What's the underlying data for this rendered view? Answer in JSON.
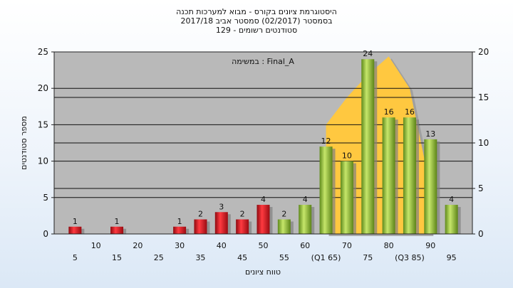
{
  "chart_data": {
    "type": "bar",
    "title_lines": [
      "היסטוגרמת ציונים בקורס - מבוא למערכות תכנה",
      "בסמסטר  (02/2017)  סמסטר אביב 2017/18",
      "סטודנטים רשומים - 129"
    ],
    "annotation": "במשימה : Final_A",
    "ylabel": "מספר סטודנטים",
    "xlabel": "טווח ציונים",
    "ylim": [
      0,
      25
    ],
    "y_ticks": [
      0,
      5,
      10,
      15,
      20,
      25
    ],
    "y2lim": [
      0,
      20
    ],
    "y2_ticks": [
      0,
      5,
      10,
      15,
      20
    ],
    "x_tick_labels": [
      {
        "pos": 5,
        "label": "5"
      },
      {
        "pos": 10,
        "label": "10"
      },
      {
        "pos": 15,
        "label": "15"
      },
      {
        "pos": 20,
        "label": "20"
      },
      {
        "pos": 25,
        "label": "25"
      },
      {
        "pos": 30,
        "label": "30"
      },
      {
        "pos": 35,
        "label": "35"
      },
      {
        "pos": 40,
        "label": "40"
      },
      {
        "pos": 45,
        "label": "45"
      },
      {
        "pos": 50,
        "label": "50"
      },
      {
        "pos": 55,
        "label": "55"
      },
      {
        "pos": 60,
        "label": "60"
      },
      {
        "pos": 65,
        "label": "(Q1 65)"
      },
      {
        "pos": 70,
        "label": "70"
      },
      {
        "pos": 75,
        "label": "75"
      },
      {
        "pos": 80,
        "label": "80"
      },
      {
        "pos": 85,
        "label": "(Q3 85)"
      },
      {
        "pos": 90,
        "label": "90"
      },
      {
        "pos": 95,
        "label": "95"
      }
    ],
    "bars": [
      {
        "x": 5,
        "value": 1,
        "group": "fail"
      },
      {
        "x": 15,
        "value": 1,
        "group": "fail"
      },
      {
        "x": 30,
        "value": 1,
        "group": "fail"
      },
      {
        "x": 35,
        "value": 2,
        "group": "fail"
      },
      {
        "x": 40,
        "value": 3,
        "group": "fail"
      },
      {
        "x": 45,
        "value": 2,
        "group": "fail"
      },
      {
        "x": 50,
        "value": 4,
        "group": "fail"
      },
      {
        "x": 55,
        "value": 2,
        "group": "pass"
      },
      {
        "x": 60,
        "value": 4,
        "group": "pass"
      },
      {
        "x": 65,
        "value": 12,
        "group": "pass"
      },
      {
        "x": 70,
        "value": 10,
        "group": "pass"
      },
      {
        "x": 75,
        "value": 24,
        "group": "pass"
      },
      {
        "x": 80,
        "value": 16,
        "group": "pass"
      },
      {
        "x": 85,
        "value": 16,
        "group": "pass"
      },
      {
        "x": 90,
        "value": 13,
        "group": "pass"
      },
      {
        "x": 95,
        "value": 4,
        "group": "pass"
      }
    ],
    "area_shape": [
      {
        "x": 65,
        "y2": 12
      },
      {
        "x": 70,
        "y2": 15
      },
      {
        "x": 75,
        "y2": 17.5
      },
      {
        "x": 80,
        "y2": 19.5
      },
      {
        "x": 85,
        "y2": 16
      },
      {
        "x": 90,
        "y2": 5
      }
    ],
    "colors": {
      "plot_bg": "#b9b9b9",
      "fail_bar": "#e2141c",
      "pass_bar": "#9cc63e",
      "area": "#ffc840",
      "grid": "#111111"
    }
  }
}
